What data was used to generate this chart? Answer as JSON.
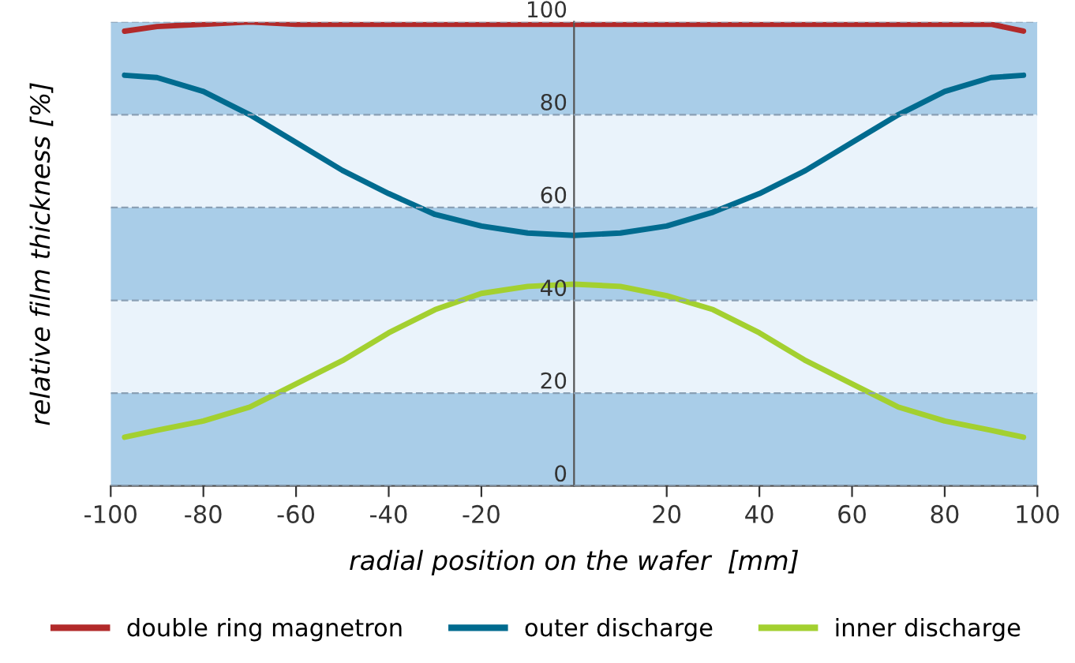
{
  "chart_data": {
    "type": "line",
    "xlabel": "radial position on the wafer  [mm]",
    "ylabel": "relative film thickness [%]",
    "xlim": [
      -100,
      100
    ],
    "xticks": [
      -100,
      -80,
      -60,
      -40,
      -20,
      20,
      40,
      60,
      80,
      100
    ],
    "ylim": [
      0,
      100
    ],
    "yticks": [
      0,
      20,
      40,
      60,
      80,
      100
    ],
    "grid": "y",
    "legend": "bottom",
    "line_style": "solid",
    "marker": "none",
    "x": [
      -97,
      -90,
      -80,
      -70,
      -60,
      -50,
      -40,
      -30,
      -20,
      -10,
      0,
      10,
      20,
      30,
      40,
      50,
      60,
      70,
      80,
      90,
      97
    ],
    "bands": [
      {
        "axis": "y",
        "from": 0,
        "to": 20,
        "color": "#a9cde8"
      },
      {
        "axis": "y",
        "from": 20,
        "to": 40,
        "color": "#eaf3fb"
      },
      {
        "axis": "y",
        "from": 40,
        "to": 60,
        "color": "#a9cde8"
      },
      {
        "axis": "y",
        "from": 60,
        "to": 80,
        "color": "#eaf3fb"
      },
      {
        "axis": "y",
        "from": 80,
        "to": 100,
        "color": "#a9cde8"
      }
    ],
    "series": [
      {
        "name": "double ring magnetron",
        "color": "#b22a2a",
        "values": [
          98,
          99,
          99.5,
          100,
          99.5,
          99.5,
          99.5,
          99.5,
          99.5,
          99.5,
          99.5,
          99.5,
          99.5,
          99.5,
          99.5,
          99.5,
          99.5,
          99.5,
          99.5,
          99.5,
          98
        ]
      },
      {
        "name": "outer discharge",
        "color": "#006b8f",
        "values": [
          88.5,
          88,
          85,
          80,
          74,
          68,
          63,
          58.5,
          56,
          54.5,
          54,
          54.5,
          56,
          59,
          63,
          68,
          74,
          80,
          85,
          88,
          88.5
        ]
      },
      {
        "name": "inner discharge",
        "color": "#a3d030",
        "values": [
          10.5,
          12,
          14,
          17,
          22,
          27,
          33,
          38,
          41.5,
          43,
          43.5,
          43,
          41,
          38,
          33,
          27,
          22,
          17,
          14,
          12,
          10.5
        ]
      }
    ]
  }
}
